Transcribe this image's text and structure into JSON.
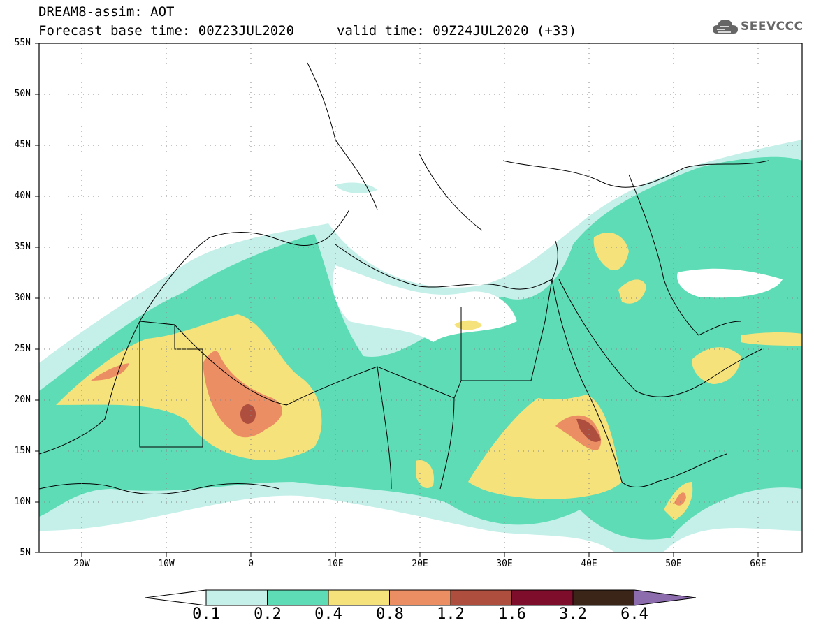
{
  "header": {
    "product": "DREAM8-assim: AOT",
    "base_time": "Forecast base time: 00Z23JUL2020",
    "valid_time": "valid time: 09Z24JUL2020 (+33)"
  },
  "logo": {
    "text": "SEEVCCC",
    "icon": "cloud-icon"
  },
  "map": {
    "lat_labels": [
      "55N",
      "50N",
      "45N",
      "40N",
      "35N",
      "30N",
      "25N",
      "20N",
      "15N",
      "10N",
      "5N"
    ],
    "lon_labels": [
      "20W",
      "10W",
      "0",
      "10E",
      "20E",
      "30E",
      "40E",
      "50E",
      "60E"
    ],
    "lat_range": [
      5,
      55
    ],
    "lon_range": [
      -25,
      65
    ],
    "grid": "dotted"
  },
  "colorbar": {
    "levels": [
      "0.1",
      "0.2",
      "0.4",
      "0.8",
      "1.2",
      "1.6",
      "3.2",
      "6.4"
    ],
    "colors": [
      "#ffffff",
      "#c4f0e9",
      "#5edcb6",
      "#f5e27a",
      "#eb8e64",
      "#ae4e3e",
      "#7e0c2b",
      "#3a2518",
      "#8c6cad"
    ]
  }
}
